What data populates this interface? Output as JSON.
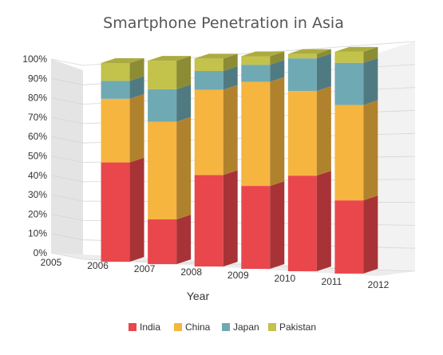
{
  "chart_data": {
    "type": "bar",
    "stacked": "percent",
    "view": "3d",
    "title": "Smartphone Penetration in Asia",
    "xlabel": "Year",
    "ylabel": "",
    "ylim": [
      0,
      100
    ],
    "y_ticks": [
      "0%",
      "10%",
      "20%",
      "30%",
      "40%",
      "50%",
      "60%",
      "70%",
      "80%",
      "90%",
      "100%"
    ],
    "x_ticks": [
      "2005",
      "2006",
      "2007",
      "2008",
      "2009",
      "2010",
      "2011",
      "2012"
    ],
    "categories": [
      "2006",
      "2007",
      "2008",
      "2009",
      "2010",
      "2011"
    ],
    "series": [
      {
        "name": "India",
        "color": "#e9474c",
        "values": [
          50,
          22,
          44,
          39,
          44,
          33
        ]
      },
      {
        "name": "China",
        "color": "#f6b53f",
        "values": [
          32,
          48,
          41,
          49,
          39,
          43
        ]
      },
      {
        "name": "Japan",
        "color": "#6fa9b4",
        "values": [
          9,
          16,
          9,
          8,
          15,
          19
        ]
      },
      {
        "name": "Pakistan",
        "color": "#c3c24a",
        "values": [
          9,
          14,
          6,
          4,
          2,
          5
        ]
      }
    ],
    "grid": true,
    "legend": "bottom"
  }
}
